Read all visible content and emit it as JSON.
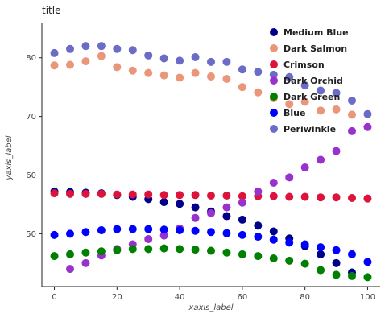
{
  "chart_data": {
    "type": "scatter",
    "title": "title",
    "xlabel": "xaxis_label",
    "ylabel": "yaxis_label",
    "xlim": [
      -4,
      104
    ],
    "ylim": [
      41,
      86
    ],
    "x_ticks": [
      0,
      20,
      40,
      60,
      80,
      100
    ],
    "y_ticks": [
      50,
      60,
      70,
      80
    ],
    "grid": false,
    "legend_position": "right",
    "x": [
      0,
      5,
      10,
      15,
      20,
      25,
      30,
      35,
      40,
      45,
      50,
      55,
      60,
      65,
      70,
      75,
      80,
      85,
      90,
      95,
      100
    ],
    "series": [
      {
        "name": "Medium Blue",
        "color": "#00008b",
        "values": [
          57.2,
          57.1,
          57.0,
          56.9,
          56.6,
          56.3,
          55.9,
          55.4,
          55.1,
          54.5,
          53.8,
          53.0,
          52.4,
          51.4,
          50.4,
          49.2,
          47.9,
          46.5,
          45.0,
          43.4,
          null
        ]
      },
      {
        "name": "Dark Salmon",
        "color": "#e9967a",
        "values": [
          78.7,
          78.8,
          79.4,
          80.3,
          78.4,
          77.8,
          77.4,
          77.0,
          76.6,
          77.4,
          76.8,
          76.4,
          75.0,
          74.1,
          73.1,
          72.1,
          72.5,
          71.0,
          71.2,
          70.3,
          null
        ]
      },
      {
        "name": "Crimson",
        "color": "#dc143c",
        "values": [
          56.9,
          56.8,
          56.8,
          56.8,
          56.7,
          56.7,
          56.7,
          56.6,
          56.6,
          56.6,
          56.5,
          56.5,
          56.4,
          56.4,
          56.4,
          56.3,
          56.3,
          56.2,
          56.2,
          56.1,
          56.0
        ]
      },
      {
        "name": "Dark Orchid",
        "color": "#9932cc",
        "values": [
          null,
          44.0,
          45.0,
          46.3,
          47.4,
          48.2,
          49.1,
          49.7,
          50.9,
          52.7,
          53.5,
          54.5,
          55.3,
          57.2,
          58.7,
          59.6,
          61.3,
          62.6,
          64.1,
          67.5,
          68.2
        ]
      },
      {
        "name": "Dark Green",
        "color": "#008000",
        "values": [
          46.2,
          46.5,
          46.8,
          47.0,
          47.2,
          47.4,
          47.4,
          47.5,
          47.4,
          47.3,
          47.1,
          46.8,
          46.5,
          46.2,
          45.8,
          45.4,
          44.9,
          43.8,
          43.0,
          42.8,
          42.6
        ]
      },
      {
        "name": "Blue",
        "color": "#0000ff",
        "values": [
          49.8,
          50.0,
          50.3,
          50.6,
          50.8,
          50.8,
          50.8,
          50.7,
          50.6,
          50.5,
          50.3,
          50.1,
          49.8,
          49.5,
          49.0,
          48.5,
          48.2,
          47.7,
          47.2,
          46.5,
          45.2
        ]
      },
      {
        "name": "Periwinkle",
        "color": "#6b6bc8",
        "values": [
          80.8,
          81.5,
          82.0,
          82.0,
          81.5,
          81.3,
          80.4,
          79.9,
          79.5,
          80.1,
          79.3,
          79.3,
          78.0,
          77.6,
          77.1,
          76.7,
          75.3,
          74.4,
          74.0,
          72.7,
          70.4
        ]
      }
    ]
  }
}
